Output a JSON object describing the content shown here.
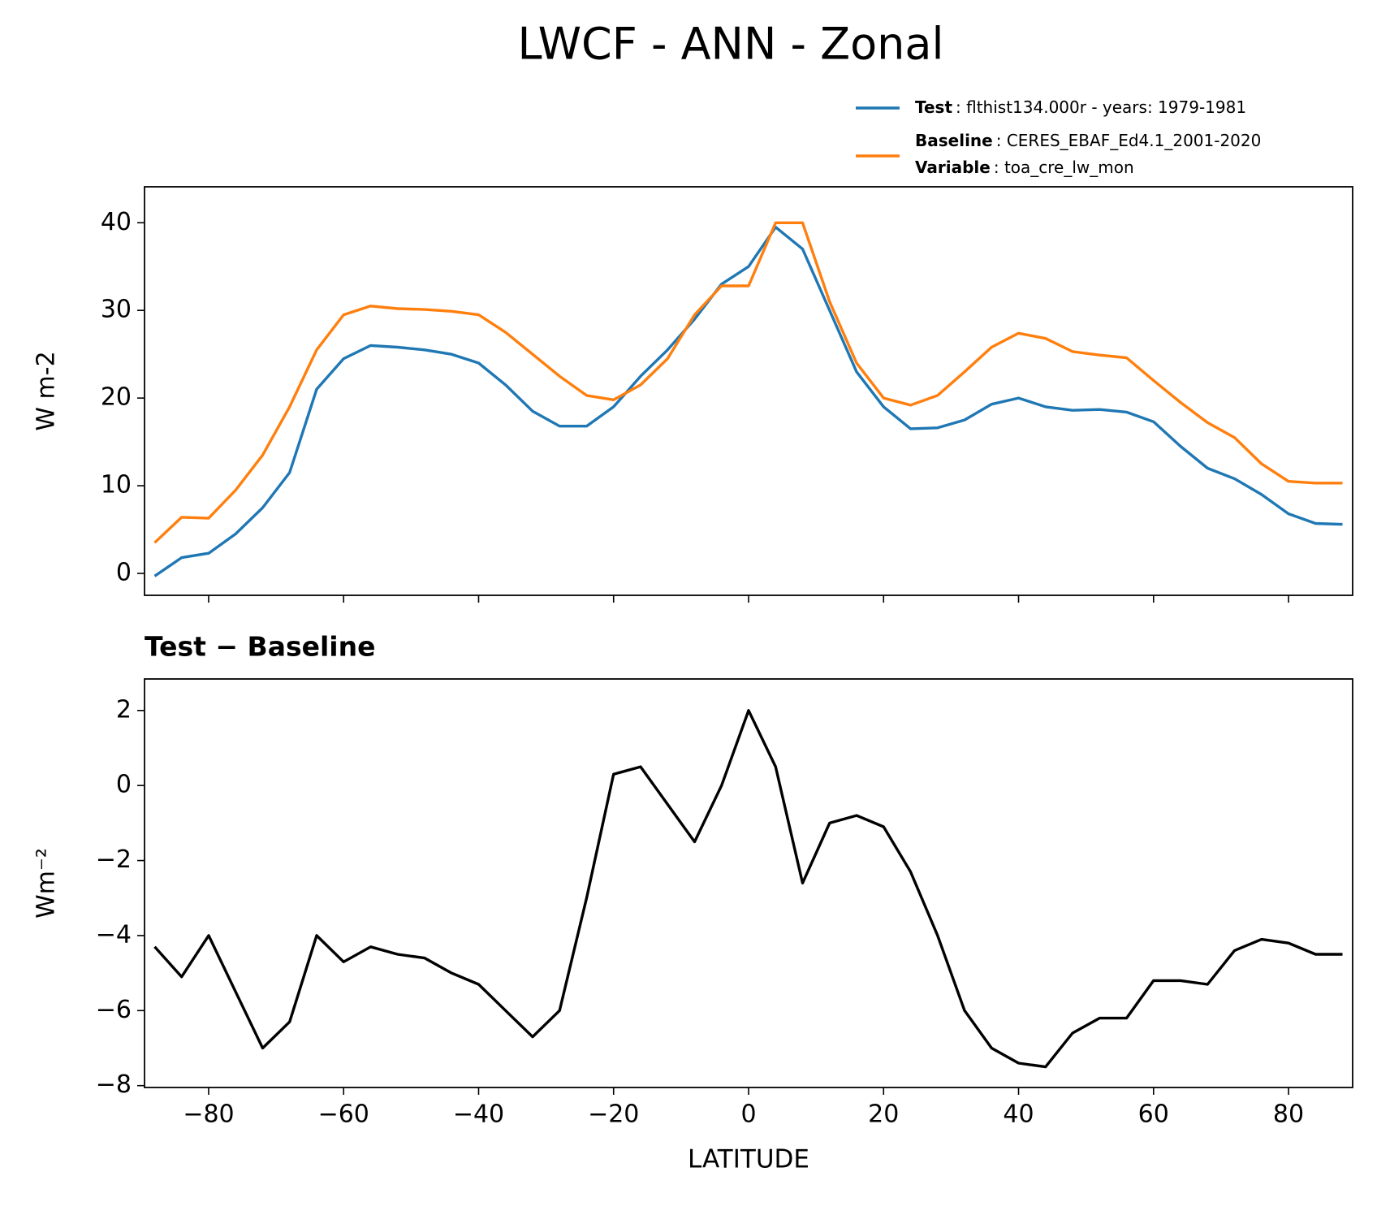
{
  "title": "LWCF - ANN - Zonal",
  "legend": {
    "entries": [
      {
        "label": "Test",
        "text": ": flthist134.000r - years: 1979-1981"
      },
      {
        "label": "Baseline",
        "text": ": CERES_EBAF_Ed4.1_2001-2020"
      },
      {
        "label": "Variable",
        "text": ": toa_cre_lw_mon"
      }
    ]
  },
  "chart_data": [
    {
      "type": "line",
      "ylabel": "W m-2",
      "xlim": [
        -89.5,
        89.5
      ],
      "ylim": [
        -2.5,
        44.1
      ],
      "xticks": [
        -80,
        -60,
        -40,
        -20,
        0,
        20,
        40,
        60,
        80
      ],
      "yticks": [
        0,
        10,
        20,
        30,
        40
      ],
      "x": [
        -88,
        -84,
        -80,
        -76,
        -72,
        -68,
        -64,
        -60,
        -56,
        -52,
        -48,
        -44,
        -40,
        -36,
        -32,
        -28,
        -24,
        -20,
        -16,
        -12,
        -8,
        -4,
        0,
        4,
        8,
        12,
        16,
        20,
        24,
        28,
        32,
        36,
        40,
        44,
        48,
        52,
        56,
        60,
        64,
        68,
        72,
        76,
        80,
        84,
        88
      ],
      "series": [
        {
          "name": "Test",
          "color": "#1f77b4",
          "values": [
            -0.3,
            1.8,
            2.3,
            4.5,
            7.5,
            11.5,
            21,
            24.5,
            26,
            25.8,
            25.5,
            25,
            24,
            21.5,
            18.5,
            16.8,
            16.8,
            19,
            22.5,
            25.5,
            29,
            33,
            35,
            39.5,
            37,
            30,
            23,
            19,
            16.5,
            16.6,
            17.5,
            19.3,
            20,
            19,
            18.6,
            18.7,
            18.4,
            17.3,
            14.5,
            12,
            10.8,
            9,
            6.8,
            5.7,
            5.6
          ]
        },
        {
          "name": "Baseline",
          "color": "#ff7f0e",
          "values": [
            3.5,
            6.4,
            6.3,
            9.5,
            13.5,
            19,
            25.5,
            29.5,
            30.5,
            30.2,
            30.1,
            29.9,
            29.5,
            27.5,
            25,
            22.5,
            20.3,
            19.8,
            21.5,
            24.5,
            29.5,
            32.8,
            32.8,
            40,
            40,
            31,
            24,
            20,
            19.2,
            20.3,
            23,
            25.8,
            27.4,
            26.8,
            25.3,
            24.9,
            24.6,
            22,
            19.5,
            17.2,
            15.5,
            12.5,
            10.5,
            10.3,
            10.3
          ]
        }
      ]
    },
    {
      "type": "line",
      "title": "Test − Baseline",
      "xlabel": "LATITUDE",
      "ylabel": "Wm⁻²",
      "xlim": [
        -89.5,
        89.5
      ],
      "ylim": [
        -8.05,
        2.84
      ],
      "xticks": [
        {
          "value": -80,
          "label": "−80"
        },
        {
          "value": -60,
          "label": "−60"
        },
        {
          "value": -40,
          "label": "−40"
        },
        {
          "value": -20,
          "label": "−20"
        },
        0,
        20,
        40,
        60,
        80
      ],
      "yticks": [
        {
          "value": -8,
          "label": "−8"
        },
        {
          "value": -6,
          "label": "−6"
        },
        {
          "value": -4,
          "label": "−4"
        },
        {
          "value": -2,
          "label": "−2"
        },
        0,
        2
      ],
      "x": [
        -88,
        -84,
        -80,
        -76,
        -72,
        -68,
        -64,
        -60,
        -56,
        -52,
        -48,
        -44,
        -40,
        -36,
        -32,
        -28,
        -24,
        -20,
        -16,
        -12,
        -8,
        -4,
        0,
        4,
        8,
        12,
        16,
        20,
        24,
        28,
        32,
        36,
        40,
        44,
        48,
        52,
        56,
        60,
        64,
        68,
        72,
        76,
        80,
        84,
        88
      ],
      "series": [
        {
          "color": "#000000",
          "values": [
            -4.3,
            -5.1,
            -4,
            -5.5,
            -7,
            -6.3,
            -4,
            -4.7,
            -4.3,
            -4.5,
            -4.6,
            -5,
            -5.3,
            -6,
            -6.7,
            -6,
            -3,
            0.3,
            0.5,
            -0.5,
            -1.5,
            0,
            2,
            0.5,
            -2.6,
            -1,
            -0.8,
            -1.1,
            -2.3,
            -4,
            -6,
            -7,
            -7.4,
            -7.5,
            -6.6,
            -6.2,
            -6.2,
            -5.2,
            -5.2,
            -5.3,
            -4.4,
            -4.1,
            -4.2,
            -4.5,
            -4.5
          ]
        }
      ]
    }
  ]
}
